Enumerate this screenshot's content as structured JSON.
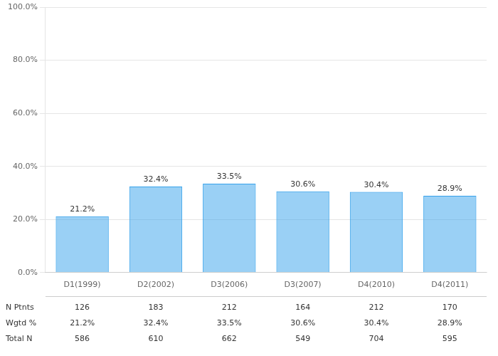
{
  "chart_data": {
    "type": "bar",
    "categories": [
      "D1(1999)",
      "D2(2002)",
      "D3(2006)",
      "D3(2007)",
      "D4(2010)",
      "D4(2011)"
    ],
    "values": [
      21.2,
      32.4,
      33.5,
      30.6,
      30.4,
      28.9
    ],
    "value_labels": [
      "21.2%",
      "32.4%",
      "33.5%",
      "30.6%",
      "30.4%",
      "28.9%"
    ],
    "data_labels": true,
    "ylim": [
      0,
      100
    ],
    "yticks": [
      {
        "value": 0,
        "label": "0.0%"
      },
      {
        "value": 20,
        "label": "20.0%"
      },
      {
        "value": 40,
        "label": "40.0%"
      },
      {
        "value": 60,
        "label": "60.0%"
      },
      {
        "value": 80,
        "label": "80.0%"
      },
      {
        "value": 100,
        "label": "100.0%"
      }
    ],
    "grid": true,
    "table": [
      {
        "label": "N Ptnts",
        "values": [
          126,
          183,
          212,
          164,
          212,
          170
        ]
      },
      {
        "label": "Wgtd %",
        "values": [
          21.2,
          32.4,
          33.5,
          30.6,
          30.4,
          28.9
        ],
        "value_labels": [
          "21.2%",
          "32.4%",
          "33.5%",
          "30.6%",
          "30.4%",
          "28.9%"
        ]
      },
      {
        "label": "Total N",
        "values": [
          586,
          610,
          662,
          549,
          704,
          595
        ]
      }
    ]
  }
}
